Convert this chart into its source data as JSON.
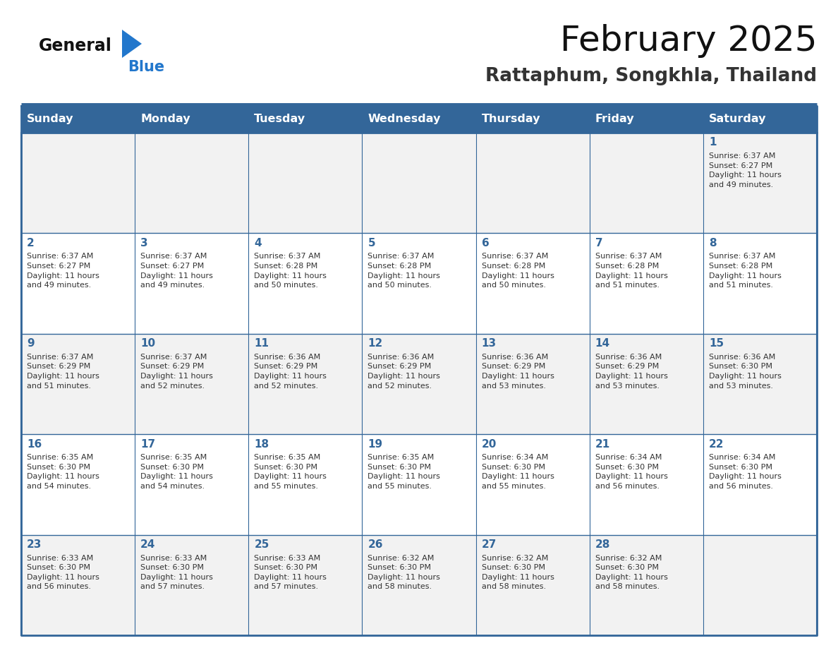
{
  "title": "February 2025",
  "subtitle": "Rattaphum, Songkhla, Thailand",
  "days_of_week": [
    "Sunday",
    "Monday",
    "Tuesday",
    "Wednesday",
    "Thursday",
    "Friday",
    "Saturday"
  ],
  "header_bg": "#336699",
  "header_text": "#FFFFFF",
  "cell_bg_odd": "#F2F2F2",
  "cell_bg_even": "#FFFFFF",
  "border_color": "#336699",
  "text_color": "#333333",
  "day_number_color": "#336699",
  "logo_general_color": "#111111",
  "logo_blue_color": "#2277CC",
  "logo_triangle_color": "#2277CC",
  "title_color": "#111111",
  "subtitle_color": "#333333",
  "calendar_data": [
    [
      {
        "day": 0,
        "info": ""
      },
      {
        "day": 0,
        "info": ""
      },
      {
        "day": 0,
        "info": ""
      },
      {
        "day": 0,
        "info": ""
      },
      {
        "day": 0,
        "info": ""
      },
      {
        "day": 0,
        "info": ""
      },
      {
        "day": 1,
        "info": "Sunrise: 6:37 AM\nSunset: 6:27 PM\nDaylight: 11 hours\nand 49 minutes."
      }
    ],
    [
      {
        "day": 2,
        "info": "Sunrise: 6:37 AM\nSunset: 6:27 PM\nDaylight: 11 hours\nand 49 minutes."
      },
      {
        "day": 3,
        "info": "Sunrise: 6:37 AM\nSunset: 6:27 PM\nDaylight: 11 hours\nand 49 minutes."
      },
      {
        "day": 4,
        "info": "Sunrise: 6:37 AM\nSunset: 6:28 PM\nDaylight: 11 hours\nand 50 minutes."
      },
      {
        "day": 5,
        "info": "Sunrise: 6:37 AM\nSunset: 6:28 PM\nDaylight: 11 hours\nand 50 minutes."
      },
      {
        "day": 6,
        "info": "Sunrise: 6:37 AM\nSunset: 6:28 PM\nDaylight: 11 hours\nand 50 minutes."
      },
      {
        "day": 7,
        "info": "Sunrise: 6:37 AM\nSunset: 6:28 PM\nDaylight: 11 hours\nand 51 minutes."
      },
      {
        "day": 8,
        "info": "Sunrise: 6:37 AM\nSunset: 6:28 PM\nDaylight: 11 hours\nand 51 minutes."
      }
    ],
    [
      {
        "day": 9,
        "info": "Sunrise: 6:37 AM\nSunset: 6:29 PM\nDaylight: 11 hours\nand 51 minutes."
      },
      {
        "day": 10,
        "info": "Sunrise: 6:37 AM\nSunset: 6:29 PM\nDaylight: 11 hours\nand 52 minutes."
      },
      {
        "day": 11,
        "info": "Sunrise: 6:36 AM\nSunset: 6:29 PM\nDaylight: 11 hours\nand 52 minutes."
      },
      {
        "day": 12,
        "info": "Sunrise: 6:36 AM\nSunset: 6:29 PM\nDaylight: 11 hours\nand 52 minutes."
      },
      {
        "day": 13,
        "info": "Sunrise: 6:36 AM\nSunset: 6:29 PM\nDaylight: 11 hours\nand 53 minutes."
      },
      {
        "day": 14,
        "info": "Sunrise: 6:36 AM\nSunset: 6:29 PM\nDaylight: 11 hours\nand 53 minutes."
      },
      {
        "day": 15,
        "info": "Sunrise: 6:36 AM\nSunset: 6:30 PM\nDaylight: 11 hours\nand 53 minutes."
      }
    ],
    [
      {
        "day": 16,
        "info": "Sunrise: 6:35 AM\nSunset: 6:30 PM\nDaylight: 11 hours\nand 54 minutes."
      },
      {
        "day": 17,
        "info": "Sunrise: 6:35 AM\nSunset: 6:30 PM\nDaylight: 11 hours\nand 54 minutes."
      },
      {
        "day": 18,
        "info": "Sunrise: 6:35 AM\nSunset: 6:30 PM\nDaylight: 11 hours\nand 55 minutes."
      },
      {
        "day": 19,
        "info": "Sunrise: 6:35 AM\nSunset: 6:30 PM\nDaylight: 11 hours\nand 55 minutes."
      },
      {
        "day": 20,
        "info": "Sunrise: 6:34 AM\nSunset: 6:30 PM\nDaylight: 11 hours\nand 55 minutes."
      },
      {
        "day": 21,
        "info": "Sunrise: 6:34 AM\nSunset: 6:30 PM\nDaylight: 11 hours\nand 56 minutes."
      },
      {
        "day": 22,
        "info": "Sunrise: 6:34 AM\nSunset: 6:30 PM\nDaylight: 11 hours\nand 56 minutes."
      }
    ],
    [
      {
        "day": 23,
        "info": "Sunrise: 6:33 AM\nSunset: 6:30 PM\nDaylight: 11 hours\nand 56 minutes."
      },
      {
        "day": 24,
        "info": "Sunrise: 6:33 AM\nSunset: 6:30 PM\nDaylight: 11 hours\nand 57 minutes."
      },
      {
        "day": 25,
        "info": "Sunrise: 6:33 AM\nSunset: 6:30 PM\nDaylight: 11 hours\nand 57 minutes."
      },
      {
        "day": 26,
        "info": "Sunrise: 6:32 AM\nSunset: 6:30 PM\nDaylight: 11 hours\nand 58 minutes."
      },
      {
        "day": 27,
        "info": "Sunrise: 6:32 AM\nSunset: 6:30 PM\nDaylight: 11 hours\nand 58 minutes."
      },
      {
        "day": 28,
        "info": "Sunrise: 6:32 AM\nSunset: 6:30 PM\nDaylight: 11 hours\nand 58 minutes."
      },
      {
        "day": 0,
        "info": ""
      }
    ]
  ]
}
